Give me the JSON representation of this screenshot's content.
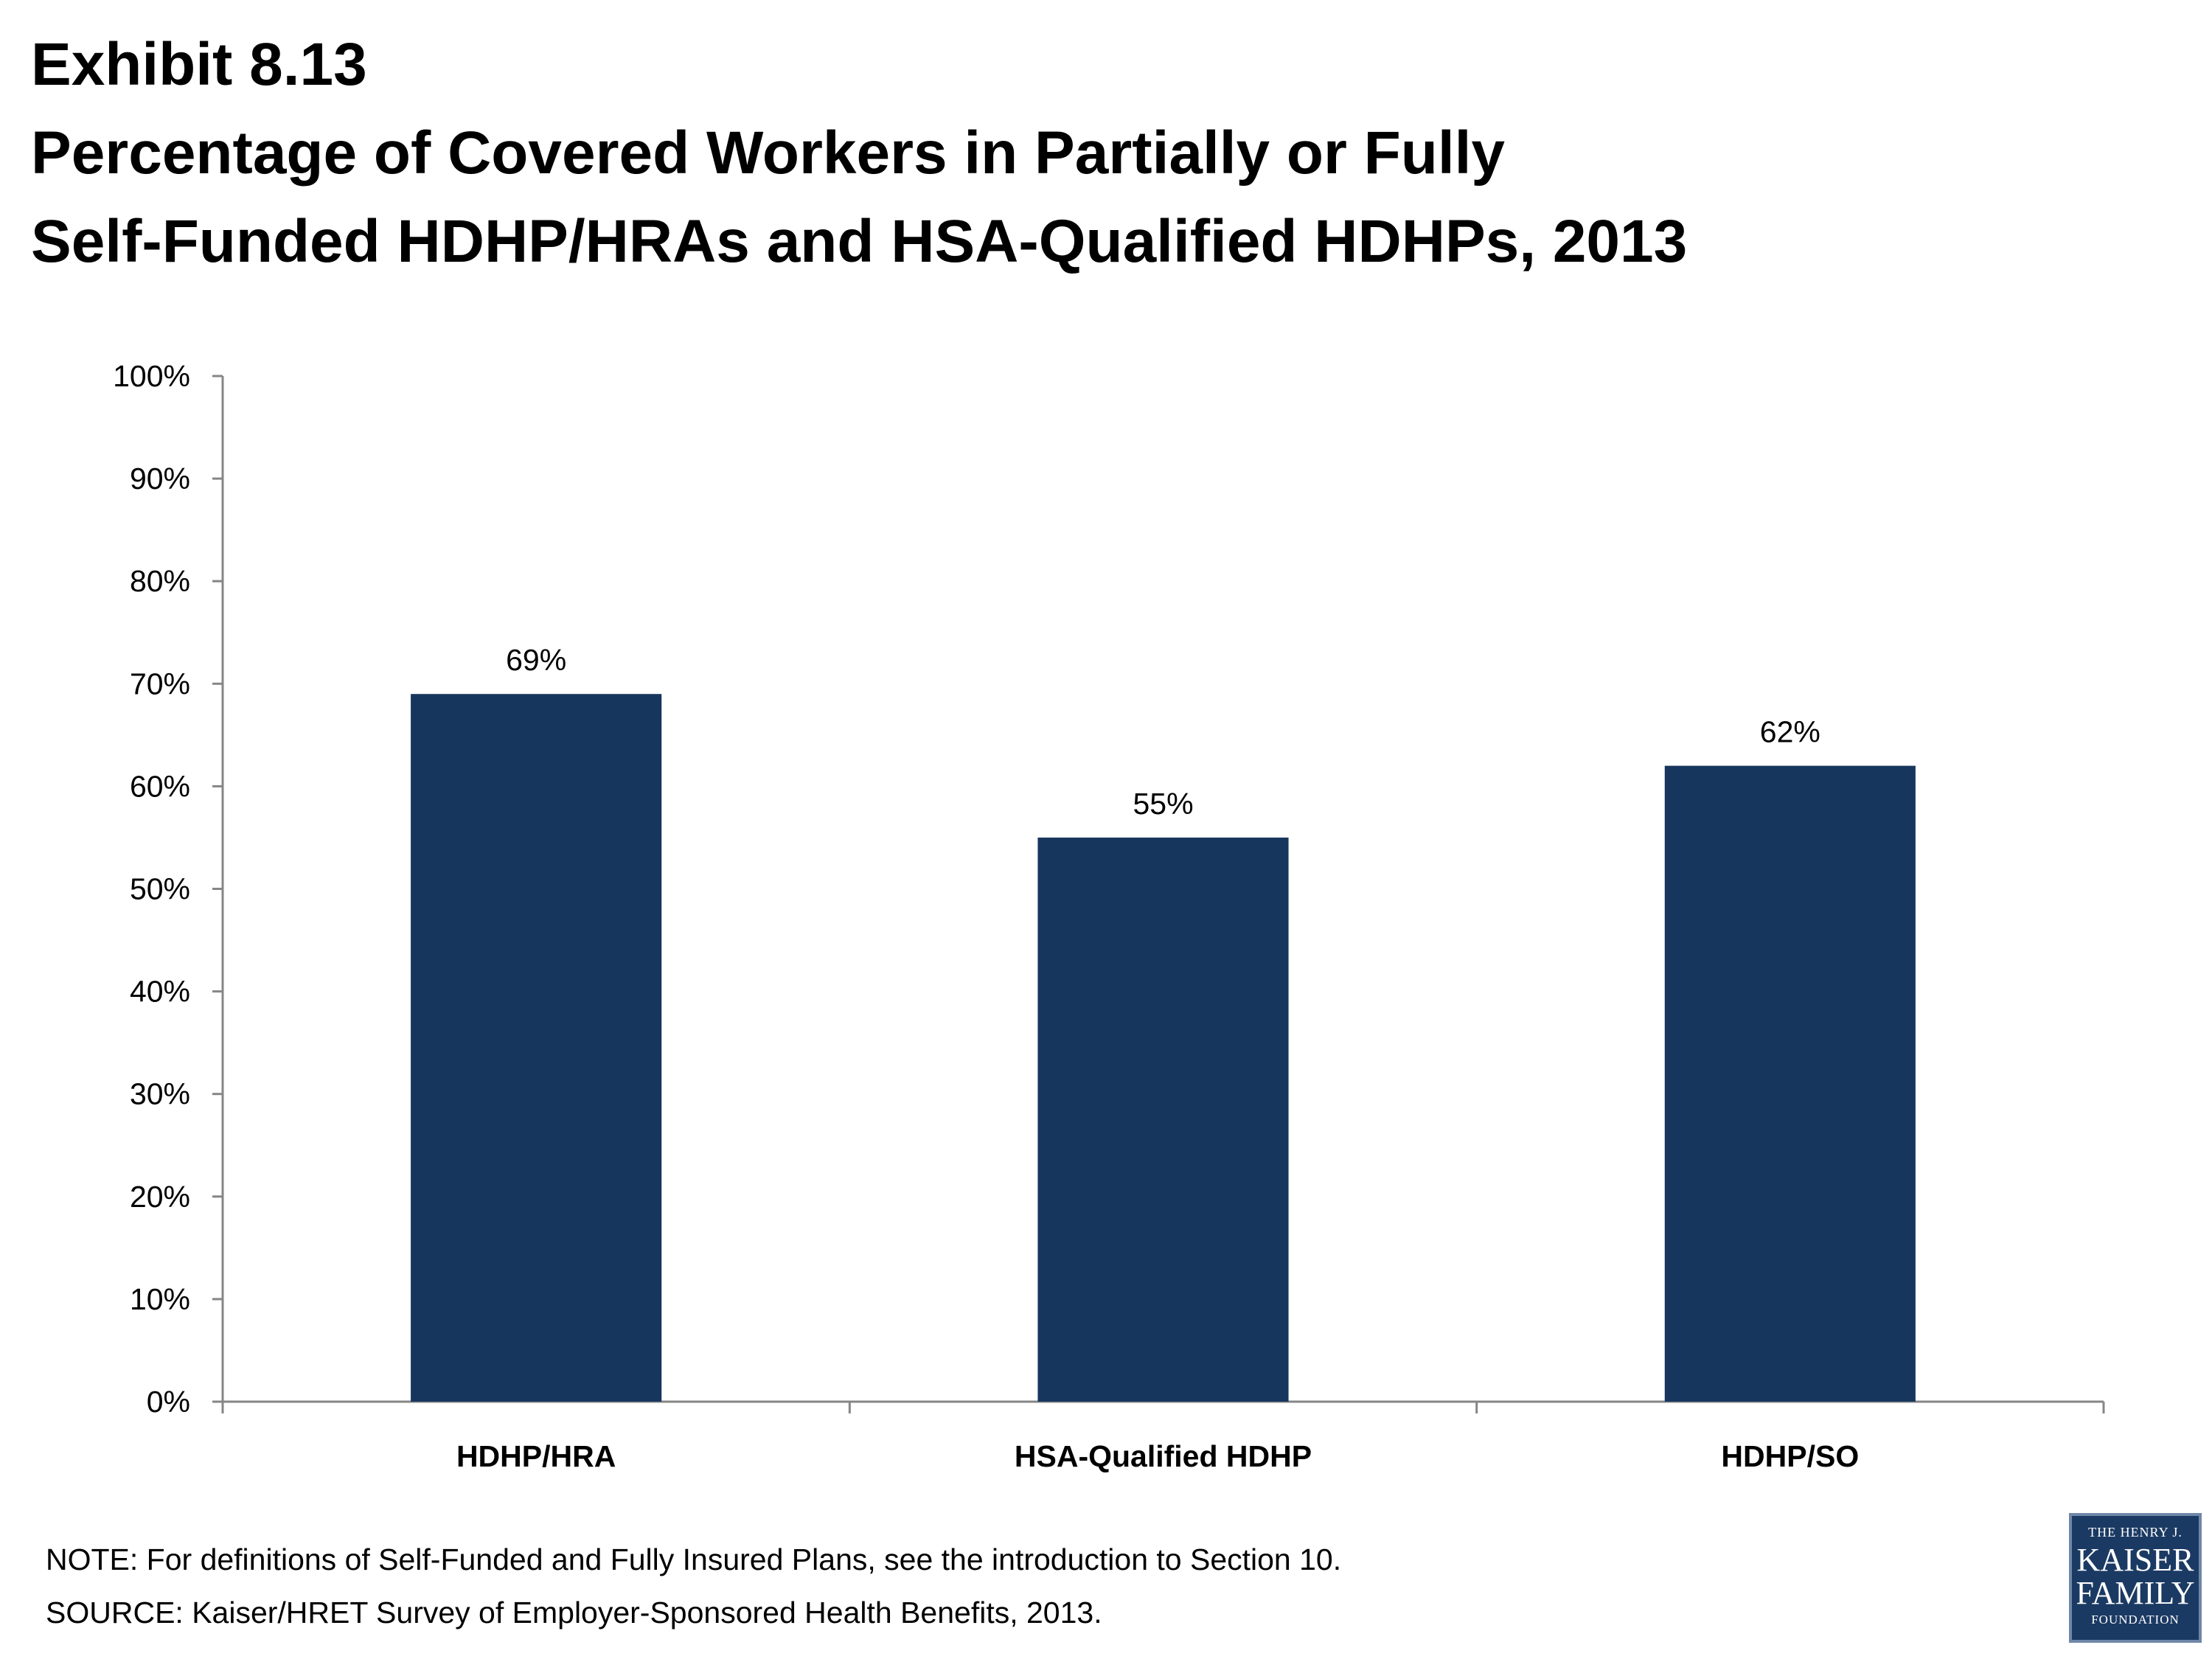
{
  "title": {
    "line1": "Exhibit 8.13",
    "line2": "Percentage of Covered Workers in Partially or Fully",
    "line3": "Self-Funded HDHP/HRAs and HSA-Qualified HDHPs, 2013"
  },
  "chart_data": {
    "type": "bar",
    "title": "Percentage of Covered Workers in Partially or Fully Self-Funded HDHP/HRAs and HSA-Qualified HDHPs, 2013",
    "categories": [
      "HDHP/HRA",
      "HSA-Qualified HDHP",
      "HDHP/SO"
    ],
    "values": [
      69,
      55,
      62
    ],
    "data_labels": [
      "69%",
      "55%",
      "62%"
    ],
    "ylim": [
      0,
      100
    ],
    "y_ticks": [
      "0%",
      "10%",
      "20%",
      "30%",
      "40%",
      "50%",
      "60%",
      "70%",
      "80%",
      "90%",
      "100%"
    ],
    "xlabel": "",
    "ylabel": "",
    "grid": false,
    "bar_color": "#17365d"
  },
  "footnotes": {
    "note": "NOTE: For definitions of Self-Funded and Fully Insured Plans, see the introduction to Section 10.",
    "source": "SOURCE:  Kaiser/HRET Survey of Employer-Sponsored Health Benefits, 2013."
  },
  "logo": {
    "line1": "THE HENRY J.",
    "line2": "KAISER",
    "line3": "FAMILY",
    "line4": "FOUNDATION"
  }
}
